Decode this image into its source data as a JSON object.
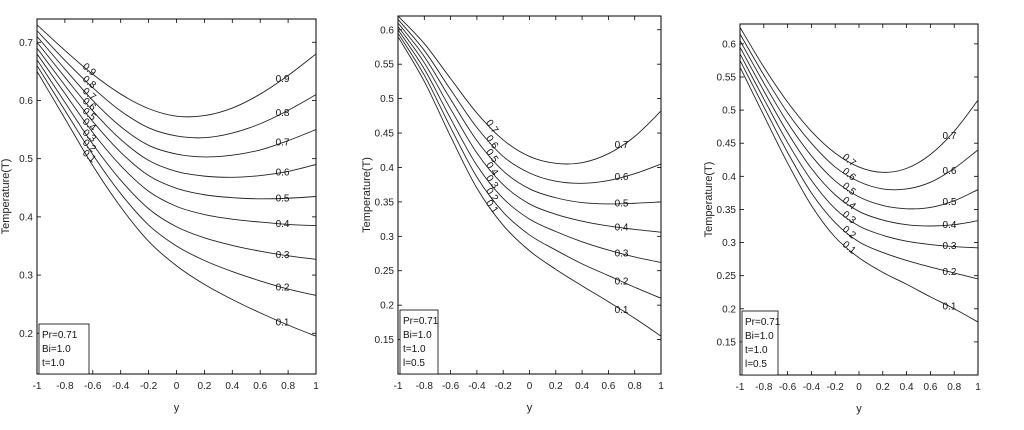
{
  "chart_data": [
    {
      "type": "line",
      "xlabel": "y",
      "ylabel": "Temperature(T)",
      "xlim": [
        -1,
        1
      ],
      "ylim": [
        0.13,
        0.74
      ],
      "xticks": [
        -1,
        -0.8,
        -0.6,
        -0.4,
        -0.2,
        0,
        0.2,
        0.4,
        0.6,
        0.8,
        1
      ],
      "yticks": [
        0.2,
        0.3,
        0.4,
        0.5,
        0.6,
        0.7
      ],
      "grid": false,
      "legend_lines": [
        "Pr=0.71",
        "Bi=1.0",
        "t=1.0"
      ],
      "legend_position": "bottom-left",
      "x": [
        -1,
        -0.8,
        -0.6,
        -0.4,
        -0.2,
        0,
        0.2,
        0.4,
        0.6,
        0.8,
        1
      ],
      "series": [
        {
          "label": "0.9",
          "values": [
            0.73,
            0.686,
            0.645,
            0.611,
            0.586,
            0.573,
            0.574,
            0.587,
            0.611,
            0.643,
            0.68
          ]
        },
        {
          "label": "0.8",
          "values": [
            0.72,
            0.669,
            0.622,
            0.582,
            0.553,
            0.539,
            0.536,
            0.544,
            0.56,
            0.583,
            0.61
          ]
        },
        {
          "label": "0.7",
          "values": [
            0.71,
            0.654,
            0.6,
            0.555,
            0.523,
            0.508,
            0.503,
            0.506,
            0.515,
            0.531,
            0.55
          ]
        },
        {
          "label": "0.6",
          "values": [
            0.7,
            0.64,
            0.582,
            0.533,
            0.497,
            0.478,
            0.47,
            0.468,
            0.471,
            0.478,
            0.49
          ]
        },
        {
          "label": "0.5",
          "values": [
            0.69,
            0.626,
            0.564,
            0.511,
            0.471,
            0.449,
            0.438,
            0.433,
            0.431,
            0.432,
            0.435
          ]
        },
        {
          "label": "0.4",
          "values": [
            0.68,
            0.612,
            0.545,
            0.488,
            0.444,
            0.418,
            0.404,
            0.396,
            0.391,
            0.387,
            0.385
          ]
        },
        {
          "label": "0.3",
          "values": [
            0.67,
            0.597,
            0.525,
            0.463,
            0.414,
            0.383,
            0.364,
            0.351,
            0.341,
            0.333,
            0.327
          ]
        },
        {
          "label": "0.2",
          "values": [
            0.66,
            0.583,
            0.507,
            0.44,
            0.386,
            0.35,
            0.325,
            0.306,
            0.29,
            0.276,
            0.265
          ]
        },
        {
          "label": "0.1",
          "values": [
            0.65,
            0.569,
            0.488,
            0.417,
            0.358,
            0.316,
            0.284,
            0.258,
            0.235,
            0.214,
            0.195
          ]
        }
      ]
    },
    {
      "type": "line",
      "xlabel": "y",
      "ylabel": "Temperature(T)",
      "xlim": [
        -1,
        1
      ],
      "ylim": [
        0.1,
        0.62
      ],
      "xticks": [
        -1,
        -0.8,
        -0.6,
        -0.4,
        -0.2,
        0,
        0.2,
        0.4,
        0.6,
        0.8,
        1
      ],
      "yticks": [
        0.15,
        0.2,
        0.25,
        0.3,
        0.35,
        0.4,
        0.45,
        0.5,
        0.55,
        0.6
      ],
      "grid": false,
      "legend_lines": [
        "Pr=0.71",
        "Bi=1.0",
        "t=1.0",
        "l=0.5"
      ],
      "legend_position": "bottom-left",
      "x": [
        -1,
        -0.8,
        -0.6,
        -0.4,
        -0.2,
        0,
        0.2,
        0.4,
        0.6,
        0.8,
        1
      ],
      "series": [
        {
          "label": "0.7",
          "values": [
            0.62,
            0.58,
            0.529,
            0.479,
            0.44,
            0.416,
            0.406,
            0.407,
            0.42,
            0.445,
            0.482
          ]
        },
        {
          "label": "0.6",
          "values": [
            0.615,
            0.57,
            0.513,
            0.458,
            0.416,
            0.392,
            0.38,
            0.377,
            0.381,
            0.391,
            0.405
          ]
        },
        {
          "label": "0.5",
          "values": [
            0.61,
            0.561,
            0.499,
            0.439,
            0.395,
            0.369,
            0.356,
            0.349,
            0.347,
            0.348,
            0.35
          ]
        },
        {
          "label": "0.4",
          "values": [
            0.605,
            0.552,
            0.485,
            0.421,
            0.375,
            0.347,
            0.332,
            0.322,
            0.315,
            0.31,
            0.306
          ]
        },
        {
          "label": "0.3",
          "values": [
            0.6,
            0.543,
            0.471,
            0.403,
            0.355,
            0.325,
            0.307,
            0.292,
            0.28,
            0.27,
            0.262
          ]
        },
        {
          "label": "0.2",
          "values": [
            0.595,
            0.534,
            0.458,
            0.386,
            0.335,
            0.302,
            0.28,
            0.26,
            0.243,
            0.226,
            0.21
          ]
        },
        {
          "label": "0.1",
          "values": [
            0.59,
            0.525,
            0.445,
            0.37,
            0.316,
            0.279,
            0.252,
            0.228,
            0.205,
            0.181,
            0.155
          ]
        }
      ]
    },
    {
      "type": "line",
      "xlabel": "y",
      "ylabel": "Temperature(T)",
      "xlim": [
        -1,
        1
      ],
      "ylim": [
        0.1,
        0.63
      ],
      "xticks": [
        -1,
        -0.8,
        -0.6,
        -0.4,
        -0.2,
        0,
        0.2,
        0.4,
        0.6,
        0.8,
        1
      ],
      "yticks": [
        0.15,
        0.2,
        0.25,
        0.3,
        0.35,
        0.4,
        0.45,
        0.5,
        0.55,
        0.6
      ],
      "grid": false,
      "legend_lines": [
        "Pr=0.71",
        "Bi=1.0",
        "t=1.0",
        "l=0.5"
      ],
      "legend_position": "bottom-left",
      "x": [
        -1,
        -0.8,
        -0.6,
        -0.4,
        -0.2,
        0,
        0.2,
        0.4,
        0.6,
        0.8,
        1
      ],
      "series": [
        {
          "label": "0.7",
          "values": [
            0.625,
            0.565,
            0.512,
            0.468,
            0.435,
            0.414,
            0.406,
            0.412,
            0.433,
            0.468,
            0.515
          ]
        },
        {
          "label": "0.6",
          "values": [
            0.615,
            0.553,
            0.496,
            0.45,
            0.414,
            0.392,
            0.381,
            0.381,
            0.391,
            0.412,
            0.44
          ]
        },
        {
          "label": "0.5",
          "values": [
            0.605,
            0.541,
            0.481,
            0.431,
            0.393,
            0.369,
            0.356,
            0.351,
            0.353,
            0.363,
            0.38
          ]
        },
        {
          "label": "0.4",
          "values": [
            0.595,
            0.529,
            0.466,
            0.412,
            0.372,
            0.347,
            0.334,
            0.327,
            0.325,
            0.327,
            0.333
          ]
        },
        {
          "label": "0.3",
          "values": [
            0.585,
            0.517,
            0.451,
            0.394,
            0.351,
            0.325,
            0.311,
            0.302,
            0.297,
            0.294,
            0.292
          ]
        },
        {
          "label": "0.2",
          "values": [
            0.575,
            0.505,
            0.436,
            0.375,
            0.33,
            0.301,
            0.285,
            0.273,
            0.263,
            0.254,
            0.245
          ]
        },
        {
          "label": "0.1",
          "values": [
            0.565,
            0.492,
            0.42,
            0.356,
            0.308,
            0.277,
            0.255,
            0.237,
            0.218,
            0.2,
            0.18
          ]
        }
      ]
    }
  ]
}
